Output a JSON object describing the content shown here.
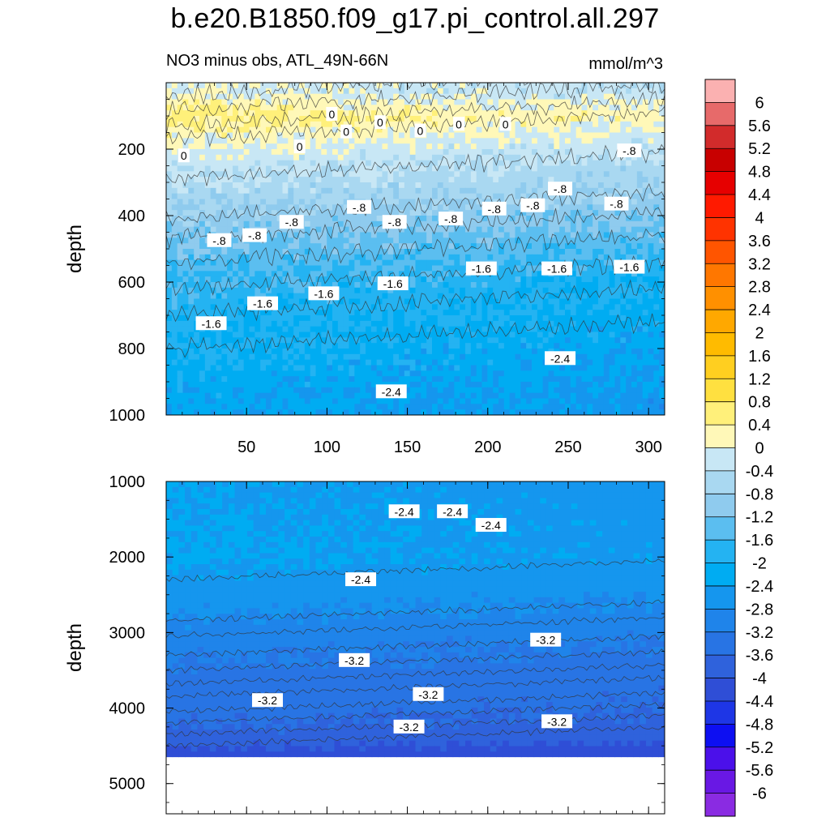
{
  "figure": {
    "title": "b.e20.B1850.f09_g17.pi_control.all.297",
    "subtitle_left": "NO3 minus obs, ATL_49N-66N",
    "subtitle_right": "mmol/m^3"
  },
  "chart_data": [
    {
      "type": "heatmap",
      "panel": "upper",
      "ylabel": "depth",
      "xlabel": "",
      "x_ticks": [
        50,
        100,
        150,
        200,
        250,
        300
      ],
      "y_ticks": [
        200,
        400,
        600,
        800,
        1000
      ],
      "xlim": [
        0,
        310
      ],
      "ylim": [
        1000,
        0
      ],
      "y_reversed": true,
      "field_description_by_depth": [
        {
          "depth": 25,
          "value": -0.2
        },
        {
          "depth": 100,
          "value": 0.4
        },
        {
          "depth": 200,
          "value": -0.2
        },
        {
          "depth": 300,
          "value": -0.6
        },
        {
          "depth": 400,
          "value": -1.0
        },
        {
          "depth": 500,
          "value": -1.4
        },
        {
          "depth": 600,
          "value": -1.8
        },
        {
          "depth": 700,
          "value": -2.0
        },
        {
          "depth": 850,
          "value": -2.2
        },
        {
          "depth": 1000,
          "value": -2.5
        }
      ],
      "contour_labels": [
        {
          "text": "0",
          "x": 211,
          "depth": 125
        },
        {
          "text": "0",
          "x": 103,
          "depth": 95
        },
        {
          "text": "0",
          "x": 158,
          "depth": 145
        },
        {
          "text": "0",
          "x": 112,
          "depth": 148
        },
        {
          "text": "0",
          "x": 83,
          "depth": 193
        },
        {
          "text": "0",
          "x": 11,
          "depth": 220
        },
        {
          "text": "0",
          "x": 133,
          "depth": 120
        },
        {
          "text": "0",
          "x": 182,
          "depth": 125
        },
        {
          "text": "-.8",
          "x": 288,
          "depth": 205
        },
        {
          "text": "-.8",
          "x": 245,
          "depth": 320
        },
        {
          "text": "-.8",
          "x": 120,
          "depth": 375
        },
        {
          "text": "-.8",
          "x": 204,
          "depth": 380
        },
        {
          "text": "-.8",
          "x": 228,
          "depth": 370
        },
        {
          "text": "-.8",
          "x": 280,
          "depth": 365
        },
        {
          "text": "-.8",
          "x": 78,
          "depth": 420
        },
        {
          "text": "-.8",
          "x": 142,
          "depth": 420
        },
        {
          "text": "-.8",
          "x": 177,
          "depth": 410
        },
        {
          "text": "-.8",
          "x": 55,
          "depth": 460
        },
        {
          "text": "-.8",
          "x": 33,
          "depth": 475
        },
        {
          "text": "-1.6",
          "x": 288,
          "depth": 555
        },
        {
          "text": "-1.6",
          "x": 196,
          "depth": 560
        },
        {
          "text": "-1.6",
          "x": 243,
          "depth": 560
        },
        {
          "text": "-1.6",
          "x": 141,
          "depth": 605
        },
        {
          "text": "-1.6",
          "x": 98,
          "depth": 635
        },
        {
          "text": "-1.6",
          "x": 60,
          "depth": 665
        },
        {
          "text": "-1.6",
          "x": 28,
          "depth": 725
        },
        {
          "text": "-2.4",
          "x": 245,
          "depth": 830
        },
        {
          "text": "-2.4",
          "x": 140,
          "depth": 930
        }
      ]
    },
    {
      "type": "heatmap",
      "panel": "lower",
      "ylabel": "depth",
      "xlabel": "",
      "y_ticks": [
        1000,
        2000,
        3000,
        4000,
        5000
      ],
      "xlim": [
        0,
        310
      ],
      "ylim": [
        5400,
        1000
      ],
      "y_reversed": true,
      "ocean_bottom_depth": 4650,
      "field_description_by_depth": [
        {
          "depth": 1000,
          "value": -2.5
        },
        {
          "depth": 2000,
          "value": -2.4
        },
        {
          "depth": 2700,
          "value": -2.8
        },
        {
          "depth": 3100,
          "value": -3.1
        },
        {
          "depth": 3600,
          "value": -3.4
        },
        {
          "depth": 4000,
          "value": -3.5
        },
        {
          "depth": 4400,
          "value": -3.8
        },
        {
          "depth": 4600,
          "value": -4.2
        }
      ],
      "contour_labels": [
        {
          "text": "-2.4",
          "x": 148,
          "depth": 1400
        },
        {
          "text": "-2.4",
          "x": 178,
          "depth": 1400
        },
        {
          "text": "-2.4",
          "x": 202,
          "depth": 1580
        },
        {
          "text": "-2.4",
          "x": 121,
          "depth": 2300
        },
        {
          "text": "-3.2",
          "x": 236,
          "depth": 3100
        },
        {
          "text": "-3.2",
          "x": 117,
          "depth": 3370
        },
        {
          "text": "-3.2",
          "x": 163,
          "depth": 3820
        },
        {
          "text": "-3.2",
          "x": 63,
          "depth": 3900
        },
        {
          "text": "-3.2",
          "x": 151,
          "depth": 4250
        },
        {
          "text": "-3.2",
          "x": 243,
          "depth": 4180
        }
      ]
    },
    {
      "type": "colorbar",
      "levels": [
        "6",
        "5.6",
        "5.2",
        "4.8",
        "4.4",
        "4",
        "3.6",
        "3.2",
        "2.8",
        "2.4",
        "2",
        "1.6",
        "1.2",
        "0.8",
        "0.4",
        "0",
        "-0.4",
        "-0.8",
        "-1.2",
        "-1.6",
        "-2",
        "-2.4",
        "-2.8",
        "-3.2",
        "-3.6",
        "-4",
        "-4.4",
        "-4.8",
        "-5.2",
        "-5.6",
        "-6"
      ],
      "colors": [
        "#fbb1b1",
        "#e76a6a",
        "#d22b2b",
        "#c80000",
        "#e60000",
        "#ff1a00",
        "#ff3300",
        "#ff5500",
        "#ff7700",
        "#ff9000",
        "#ffa800",
        "#ffbb00",
        "#ffcf20",
        "#ffe040",
        "#fff07a",
        "#fff8b8",
        "#c8e7f5",
        "#a9d8f1",
        "#8fcbee",
        "#5bbef0",
        "#24b3f2",
        "#00acf2",
        "#1596ee",
        "#1f84ea",
        "#2874e4",
        "#2f62dc",
        "#2f4ed6",
        "#1e36e6",
        "#0d0ff2",
        "#4b10ea",
        "#6918e4",
        "#8a2be2"
      ]
    }
  ]
}
